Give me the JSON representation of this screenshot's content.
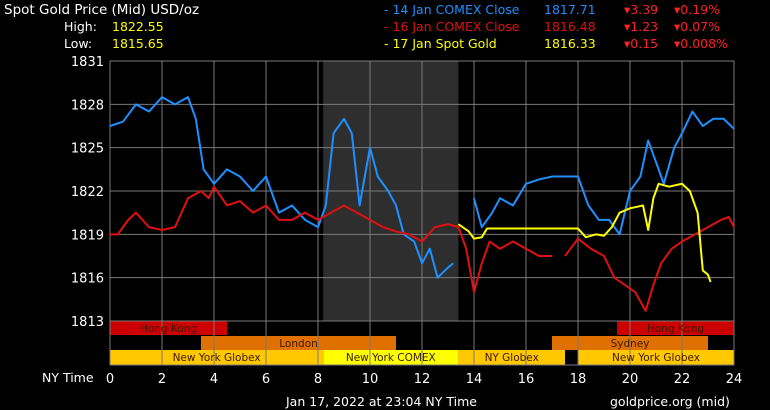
{
  "header": {
    "title": "Spot Gold Price (Mid) USD/oz",
    "high_label": "High:",
    "high": "1822.55",
    "low_label": "Low:",
    "low": "1815.65"
  },
  "legend": [
    {
      "label": "- 14 Jan COMEX Close",
      "price": "1817.71",
      "chg": "▾3.39",
      "pct": "▾0.19%",
      "color": "#1e90ff"
    },
    {
      "label": "- 16 Jan COMEX Close",
      "price": "1816.48",
      "chg": "▾1.23",
      "pct": "▾0.07%",
      "color": "#e01010"
    },
    {
      "label": "- 17 Jan Spot Gold",
      "price": "1816.33",
      "chg": "▾0.15",
      "pct": "▾0.008%",
      "color": "#ffff00"
    }
  ],
  "footer": {
    "timestamp": "Jan 17, 2022 at 23:04 NY Time",
    "source": "goldprice.org (mid)",
    "xaxis_label": "NY Time"
  },
  "colors": {
    "down": "#ff2020",
    "hk": "#cc0000",
    "london": "#e07000",
    "globex": "#ffc800",
    "comex": "#ffff00",
    "shade": "#2e2e2e",
    "grid": "#7a7a7a"
  },
  "chart_data": {
    "type": "line",
    "xlim": [
      0,
      24
    ],
    "ylim": [
      1813,
      1831
    ],
    "xticks": [
      0,
      2,
      4,
      6,
      8,
      10,
      12,
      14,
      16,
      18,
      20,
      22,
      24
    ],
    "yticks": [
      1813,
      1816,
      1819,
      1822,
      1825,
      1828,
      1831
    ],
    "grid": true,
    "shaded_range": [
      8.2,
      13.4
    ],
    "sessions": [
      {
        "name": "Hong Kong",
        "row": 0,
        "start": 0,
        "end": 4.5,
        "color": "#cc0000"
      },
      {
        "name": "Hong Kong",
        "row": 0,
        "start": 19.5,
        "end": 24,
        "color": "#cc0000"
      },
      {
        "name": "London",
        "row": 1,
        "start": 3.5,
        "end": 11,
        "color": "#e07000"
      },
      {
        "name": "Sydney",
        "row": 1,
        "start": 17,
        "end": 23,
        "color": "#e07000"
      },
      {
        "name": "New York Globex",
        "row": 2,
        "start": 0,
        "end": 8.2,
        "color": "#ffc800"
      },
      {
        "name": "New York COMEX",
        "row": 2,
        "start": 8.2,
        "end": 13.4,
        "color": "#ffff00"
      },
      {
        "name": "NY Globex",
        "row": 2,
        "start": 13.4,
        "end": 17.5,
        "color": "#ffc800"
      },
      {
        "name": "New York Globex",
        "row": 2,
        "start": 18,
        "end": 24,
        "color": "#ffc800"
      }
    ],
    "series": [
      {
        "name": "14 Jan COMEX Close",
        "color": "#1e90ff",
        "segments": [
          [
            [
              0,
              1826.5
            ],
            [
              0.5,
              1826.8
            ],
            [
              1,
              1828
            ],
            [
              1.5,
              1827.5
            ],
            [
              2,
              1828.5
            ],
            [
              2.5,
              1828
            ],
            [
              3,
              1828.5
            ],
            [
              3.3,
              1827
            ],
            [
              3.6,
              1823.5
            ],
            [
              4,
              1822.5
            ],
            [
              4.5,
              1823.5
            ],
            [
              5,
              1823
            ],
            [
              5.5,
              1822
            ],
            [
              6,
              1823
            ],
            [
              6.5,
              1820.5
            ],
            [
              7,
              1821
            ],
            [
              7.5,
              1820
            ],
            [
              8,
              1819.5
            ],
            [
              8.3,
              1821
            ],
            [
              8.6,
              1826
            ],
            [
              9,
              1827
            ],
            [
              9.3,
              1826
            ],
            [
              9.6,
              1821
            ],
            [
              10,
              1825
            ],
            [
              10.3,
              1823
            ],
            [
              10.7,
              1822
            ],
            [
              11,
              1821
            ],
            [
              11.3,
              1819
            ],
            [
              11.7,
              1818.5
            ],
            [
              12,
              1817
            ],
            [
              12.3,
              1818
            ],
            [
              12.6,
              1816
            ],
            [
              13,
              1816.7
            ],
            [
              13.2,
              1817
            ]
          ],
          [
            [
              14,
              1821.5
            ],
            [
              14.3,
              1819.5
            ],
            [
              14.7,
              1820.5
            ],
            [
              15,
              1821.5
            ],
            [
              15.5,
              1821
            ],
            [
              16,
              1822.5
            ],
            [
              16.5,
              1822.8
            ],
            [
              17,
              1823
            ],
            [
              17.5,
              1823
            ],
            [
              18,
              1823
            ],
            [
              18.4,
              1821
            ],
            [
              18.8,
              1820
            ],
            [
              19.2,
              1820
            ],
            [
              19.6,
              1819
            ],
            [
              20,
              1822
            ],
            [
              20.4,
              1823
            ],
            [
              20.7,
              1825.5
            ],
            [
              21,
              1824
            ],
            [
              21.3,
              1822.5
            ],
            [
              21.7,
              1825
            ],
            [
              22,
              1826
            ],
            [
              22.4,
              1827.5
            ],
            [
              22.8,
              1826.5
            ],
            [
              23.2,
              1827
            ],
            [
              23.6,
              1827
            ],
            [
              24,
              1826.3
            ]
          ]
        ]
      },
      {
        "name": "16 Jan COMEX Close",
        "color": "#e01010",
        "segments": [
          [
            [
              0,
              1819
            ],
            [
              0.3,
              1819
            ],
            [
              0.7,
              1820
            ],
            [
              1,
              1820.5
            ],
            [
              1.5,
              1819.5
            ],
            [
              2,
              1819.3
            ],
            [
              2.5,
              1819.5
            ],
            [
              3,
              1821.5
            ],
            [
              3.5,
              1822
            ],
            [
              3.8,
              1821.5
            ],
            [
              4,
              1822.3
            ],
            [
              4.5,
              1821
            ],
            [
              5,
              1821.3
            ],
            [
              5.5,
              1820.5
            ],
            [
              6,
              1821
            ],
            [
              6.5,
              1820
            ],
            [
              7,
              1820
            ],
            [
              7.5,
              1820.5
            ],
            [
              8,
              1820
            ],
            [
              8.5,
              1820.5
            ],
            [
              9,
              1821
            ],
            [
              9.5,
              1820.5
            ],
            [
              10,
              1820
            ],
            [
              10.5,
              1819.5
            ],
            [
              11,
              1819.2
            ],
            [
              11.5,
              1819
            ],
            [
              12,
              1818.5
            ],
            [
              12.5,
              1819.5
            ],
            [
              13,
              1819.7
            ],
            [
              13.4,
              1819.5
            ],
            [
              13.7,
              1818
            ],
            [
              14,
              1815
            ],
            [
              14.3,
              1817
            ],
            [
              14.6,
              1818.5
            ],
            [
              15,
              1818
            ],
            [
              15.5,
              1818.5
            ],
            [
              16,
              1818
            ],
            [
              16.5,
              1817.5
            ],
            [
              17,
              1817.5
            ]
          ],
          [
            [
              17.5,
              1817.5
            ],
            [
              18,
              1818.7
            ],
            [
              18.5,
              1818
            ],
            [
              19,
              1817.5
            ],
            [
              19.4,
              1816
            ],
            [
              19.8,
              1815.5
            ],
            [
              20.2,
              1815
            ],
            [
              20.6,
              1813.7
            ],
            [
              20.9,
              1815.5
            ],
            [
              21.2,
              1817
            ],
            [
              21.6,
              1818
            ],
            [
              22,
              1818.5
            ],
            [
              22.5,
              1819
            ],
            [
              23,
              1819.5
            ],
            [
              23.5,
              1820
            ],
            [
              23.8,
              1820.2
            ],
            [
              24,
              1819.5
            ]
          ]
        ]
      },
      {
        "name": "17 Jan Spot Gold",
        "color": "#ffff00",
        "segments": [
          [
            [
              13.4,
              1819.7
            ],
            [
              13.8,
              1819.2
            ],
            [
              14,
              1818.7
            ],
            [
              14.3,
              1818.8
            ],
            [
              14.5,
              1819.4
            ],
            [
              15,
              1819.4
            ],
            [
              16,
              1819.4
            ],
            [
              17,
              1819.4
            ],
            [
              18,
              1819.4
            ],
            [
              18.3,
              1818.8
            ],
            [
              18.7,
              1819
            ],
            [
              19,
              1818.9
            ],
            [
              19.3,
              1819.5
            ],
            [
              19.6,
              1820.5
            ],
            [
              20,
              1820.8
            ],
            [
              20.5,
              1821
            ],
            [
              20.7,
              1819.3
            ],
            [
              20.9,
              1821.5
            ],
            [
              21.1,
              1822.5
            ],
            [
              21.5,
              1822.3
            ],
            [
              22,
              1822.5
            ],
            [
              22.3,
              1822
            ],
            [
              22.6,
              1820.5
            ],
            [
              22.8,
              1816.5
            ],
            [
              23,
              1816.2
            ],
            [
              23.1,
              1815.7
            ]
          ]
        ]
      }
    ]
  }
}
